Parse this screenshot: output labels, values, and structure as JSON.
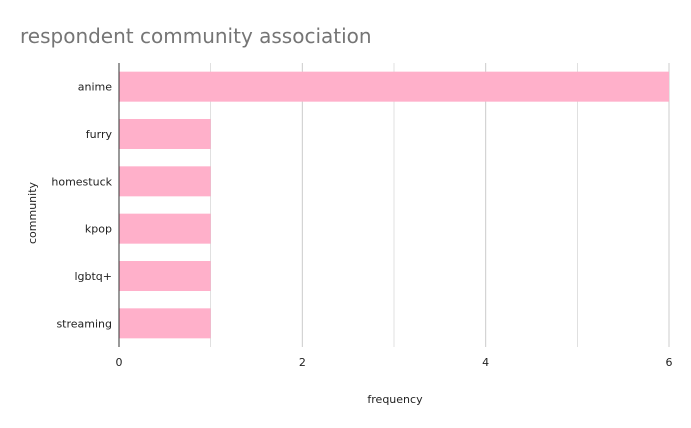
{
  "chart_data": {
    "type": "bar",
    "orientation": "horizontal",
    "title": "respondent community association",
    "xlabel": "frequency",
    "ylabel": "community",
    "categories": [
      "anime",
      "furry",
      "homestuck",
      "kpop",
      "lgbtq+",
      "streaming"
    ],
    "values": [
      6,
      1,
      1,
      1,
      1,
      1
    ],
    "xlim": [
      0,
      6
    ],
    "xticks": [
      "0",
      "2",
      "4",
      "6"
    ],
    "grid": true,
    "bar_color": "#ffb0ca",
    "grid_color": "#cccccc",
    "axis_color": "#333333",
    "title_color": "#757575"
  }
}
